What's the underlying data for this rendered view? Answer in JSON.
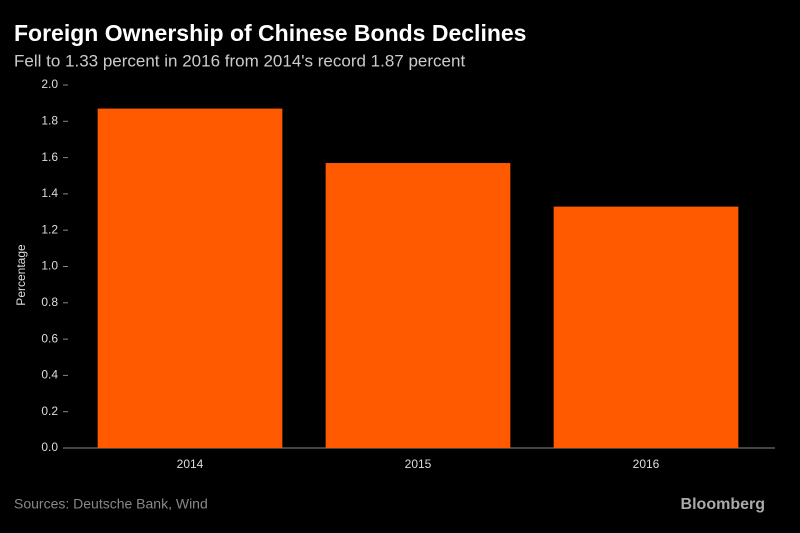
{
  "chart_data": {
    "type": "bar",
    "title": "Foreign Ownership of Chinese Bonds Declines",
    "subtitle": "Fell to 1.33 percent in 2016 from 2014's record 1.87 percent",
    "y_label": "Percentage",
    "categories": [
      "2014",
      "2015",
      "2016"
    ],
    "values": [
      1.87,
      1.57,
      1.33
    ],
    "color": "#ff5a00",
    "ylim": [
      0,
      2
    ],
    "yticks": [
      {
        "value": 0,
        "label": "0.0"
      },
      0.2,
      0.4,
      0.6,
      0.8,
      {
        "value": 1,
        "label": "1.0"
      },
      1.2,
      1.4,
      1.6,
      1.8,
      {
        "value": 2,
        "label": "2.0"
      }
    ],
    "grid": false,
    "source": "Sources: Deutsche Bank, Wind",
    "brand": "Bloomberg"
  }
}
